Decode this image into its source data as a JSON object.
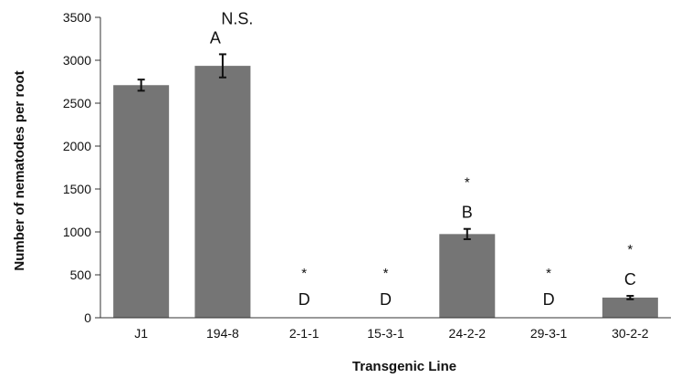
{
  "chart_data": {
    "type": "bar",
    "title": "",
    "xlabel": "Transgenic Line",
    "ylabel": "Number of nematodes per root",
    "ylim": [
      0,
      3500
    ],
    "yticks": [
      0,
      500,
      1000,
      1500,
      2000,
      2500,
      3000,
      3500
    ],
    "yticklabels": [
      "0",
      "500",
      "1000",
      "1500",
      "2000",
      "2500",
      "3000",
      "3500"
    ],
    "grid": false,
    "legend": "none",
    "categories": [
      "J1",
      "194-8",
      "2-1-1",
      "15-3-1",
      "24-2-2",
      "29-3-1",
      "30-2-2"
    ],
    "values": [
      2710,
      2935,
      0,
      0,
      975,
      0,
      235
    ],
    "error": [
      65,
      135,
      0,
      0,
      60,
      0,
      20
    ],
    "letters": [
      "",
      "A",
      "D",
      "D",
      "B",
      "D",
      "C"
    ],
    "stars": [
      "",
      "",
      "*",
      "*",
      "*",
      "*",
      "*"
    ],
    "ns_label": "N.S.",
    "bar_color": "#757575",
    "error_color": "#111111",
    "axis_color": "#333333"
  }
}
